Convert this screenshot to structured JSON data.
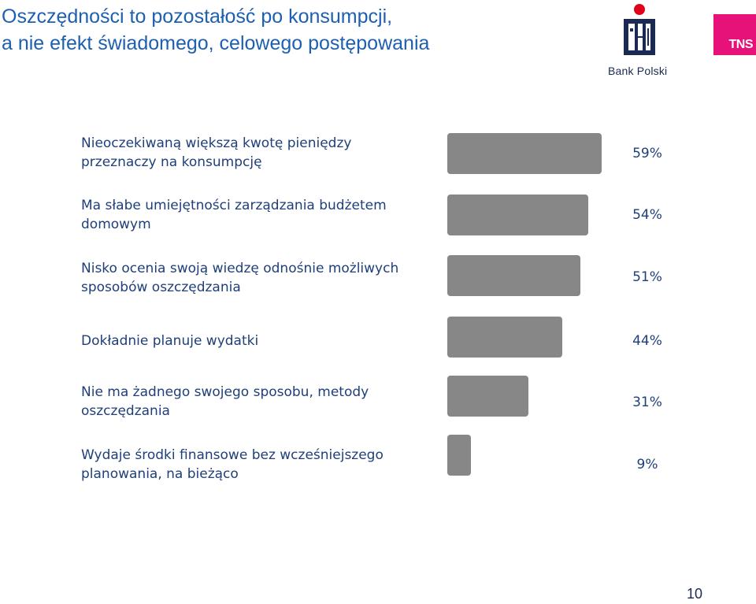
{
  "header": {
    "title_line1": "Oszczędności to pozostałość po konsumpcji,",
    "title_line2": "a nie efekt świadomego, celowego postępowania"
  },
  "logos": {
    "pko": {
      "text": "Bank Polski",
      "color": "#1a2a52",
      "accent": "#e2001a"
    },
    "tns": {
      "text": "TNS",
      "color": "#e6127a"
    }
  },
  "chart_data": {
    "type": "bar",
    "orientation": "horizontal",
    "categories": [
      [
        "Nieoczekiwaną większą kwotę pieniędzy",
        "przeznaczy na konsumpcję"
      ],
      [
        "Ma słabe umiejętności zarządzania budżetem",
        "domowym"
      ],
      [
        "Nisko ocenia swoją wiedzę odnośnie możliwych",
        "sposobów oszczędzania"
      ],
      [
        "Dokładnie planuje wydatki"
      ],
      [
        "Nie ma żadnego swojego sposobu, metody",
        "oszczędzania"
      ],
      [
        "Wydaje środki finansowe bez wcześniejszego",
        "planowania, na bieżąco"
      ]
    ],
    "values": [
      59,
      54,
      51,
      44,
      31,
      9
    ],
    "value_labels": [
      "59%",
      "54%",
      "51%",
      "44%",
      "31%",
      "9%"
    ],
    "unit": "%",
    "bar_color": "#878787",
    "label_color": "#1f3f7a",
    "grid": false,
    "legend": "none"
  },
  "footer": {
    "page_number": "10"
  }
}
